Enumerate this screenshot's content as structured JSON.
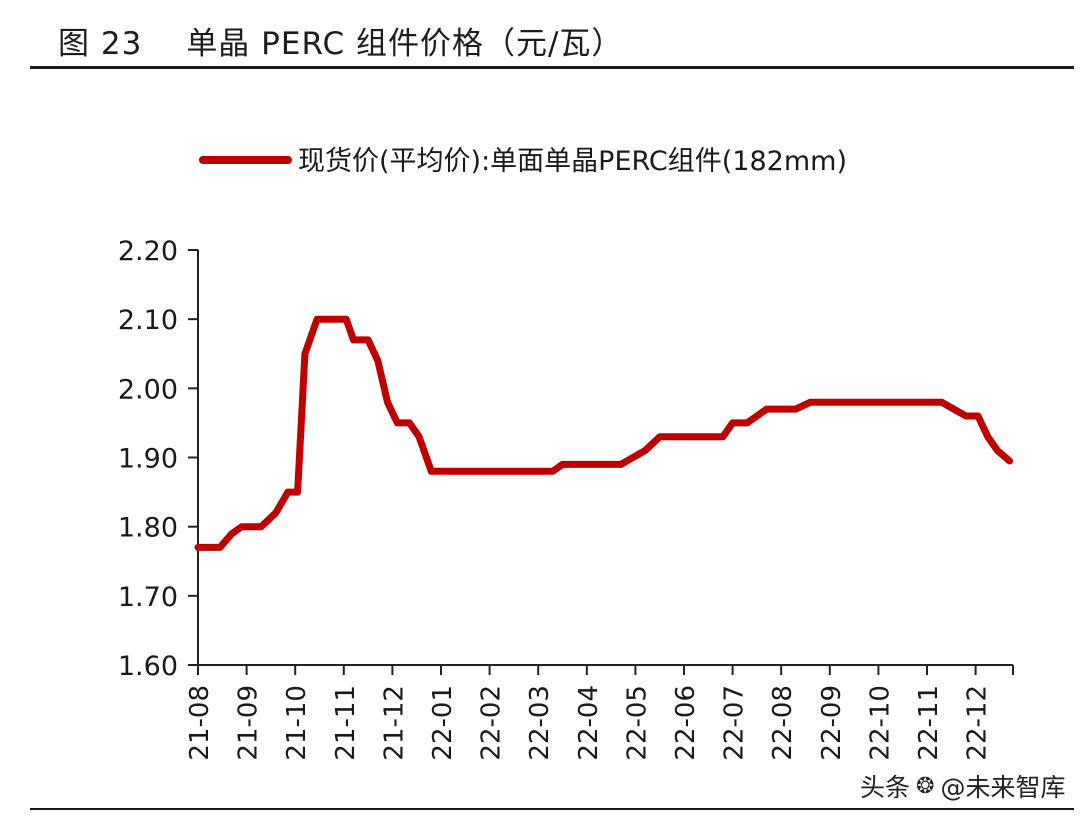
{
  "header": {
    "figure_number": "图 23",
    "title": "单晶 PERC 组件价格（元/瓦）"
  },
  "watermark": {
    "platform": "头条",
    "account": "@未来智库",
    "logo_icon": "wechat-icon"
  },
  "colors": {
    "series": "#c00000",
    "axis": "#222222"
  },
  "chart_data": {
    "type": "line",
    "title": "单晶 PERC 组件价格（元/瓦）",
    "xlabel": "",
    "ylabel": "",
    "ylim": [
      1.6,
      2.2
    ],
    "ytick_labels": [
      "1.60",
      "1.70",
      "1.80",
      "1.90",
      "2.00",
      "2.10",
      "2.20"
    ],
    "ytick_values": [
      1.6,
      1.7,
      1.8,
      1.9,
      2.0,
      2.1,
      2.2
    ],
    "categories": [
      "21-08",
      "21-09",
      "21-10",
      "21-11",
      "21-12",
      "22-01",
      "22-02",
      "22-03",
      "22-04",
      "22-05",
      "22-06",
      "22-07",
      "22-08",
      "22-09",
      "22-10",
      "22-11",
      "22-12"
    ],
    "grid": false,
    "legend_position": "top",
    "series": [
      {
        "name": "现货价(平均价):单面单晶PERC组件(182mm)",
        "color": "#c00000",
        "points": [
          [
            0.0,
            1.77
          ],
          [
            0.45,
            1.77
          ],
          [
            0.7,
            1.79
          ],
          [
            0.9,
            1.8
          ],
          [
            1.3,
            1.8
          ],
          [
            1.6,
            1.82
          ],
          [
            1.85,
            1.85
          ],
          [
            2.05,
            1.85
          ],
          [
            2.2,
            2.05
          ],
          [
            2.45,
            2.1
          ],
          [
            3.05,
            2.1
          ],
          [
            3.2,
            2.07
          ],
          [
            3.5,
            2.07
          ],
          [
            3.7,
            2.04
          ],
          [
            3.9,
            1.98
          ],
          [
            4.1,
            1.95
          ],
          [
            4.35,
            1.95
          ],
          [
            4.55,
            1.93
          ],
          [
            4.8,
            1.88
          ],
          [
            7.0,
            1.88
          ],
          [
            7.3,
            1.88
          ],
          [
            7.5,
            1.89
          ],
          [
            8.5,
            1.89
          ],
          [
            8.7,
            1.89
          ],
          [
            9.2,
            1.91
          ],
          [
            9.5,
            1.93
          ],
          [
            10.8,
            1.93
          ],
          [
            11.0,
            1.95
          ],
          [
            11.3,
            1.95
          ],
          [
            11.7,
            1.97
          ],
          [
            12.3,
            1.97
          ],
          [
            12.6,
            1.98
          ],
          [
            15.3,
            1.98
          ],
          [
            15.55,
            1.97
          ],
          [
            15.8,
            1.96
          ],
          [
            16.05,
            1.96
          ],
          [
            16.25,
            1.93
          ],
          [
            16.45,
            1.91
          ],
          [
            16.7,
            1.895
          ]
        ]
      }
    ]
  }
}
